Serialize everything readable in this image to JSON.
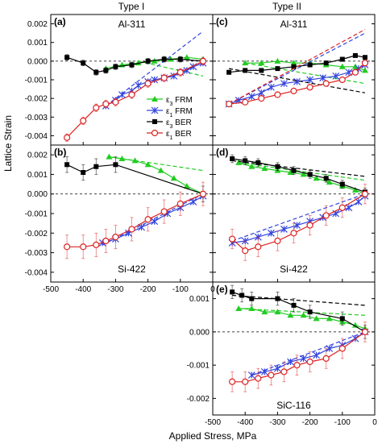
{
  "figure": {
    "column_titles": [
      "Type I",
      "Type II"
    ],
    "ylabel": "Lattice Strain",
    "xlabel": "Applied Stress, MPa",
    "legend": [
      {
        "key": "e3FRM",
        "sym": "ε",
        "sub": "3",
        "rest": " FRM",
        "color": "#22cc22",
        "marker": "triangle"
      },
      {
        "key": "e1FRM",
        "sym": "ε",
        "sub": "1",
        "rest": " FRM",
        "color": "#3344dd",
        "marker": "star"
      },
      {
        "key": "e3BER",
        "sym": "ε",
        "sub": "3",
        "rest": " BER",
        "color": "#000000",
        "marker": "square"
      },
      {
        "key": "e1BER",
        "sym": "ε",
        "sub": "1",
        "rest": " BER",
        "color": "#dd2222",
        "marker": "circle"
      }
    ],
    "x_ticks": [
      "-500",
      "-400",
      "-300",
      "-200",
      "-100",
      "0"
    ]
  },
  "chart_data": [
    {
      "type": "line",
      "panel": "(a)",
      "label": "Al-311",
      "xlim": [
        -500,
        0
      ],
      "ylim": [
        -0.0045,
        0.0025
      ],
      "yticks": [
        "0.002",
        "0.001",
        "0.000",
        "-0.001",
        "-0.002",
        "-0.003",
        "-0.004"
      ],
      "series": [
        {
          "key": "e3FRM",
          "x": [
            -330,
            -280,
            -230,
            -180,
            -130,
            -80,
            -30
          ],
          "y": [
            -0.0004,
            -0.0002,
            -0.0001,
            0.0,
            0.0001,
            0.0002,
            0.0001
          ],
          "fit": [
            [
              -230,
              0.0
            ],
            [
              -30,
              -0.0008
            ]
          ]
        },
        {
          "key": "e1FRM",
          "x": [
            -330,
            -300,
            -280,
            -250,
            -230,
            -200,
            -180,
            -150,
            -120,
            -100,
            -80,
            -60,
            -30
          ],
          "y": [
            -0.0024,
            -0.0021,
            -0.0018,
            -0.0016,
            -0.0013,
            -0.0011,
            -0.001,
            -0.0009,
            -0.0008,
            -0.0006,
            -0.0005,
            -0.0003,
            -0.0001
          ],
          "fit": [
            [
              -330,
              -0.0024
            ],
            [
              -30,
              0.0016
            ]
          ]
        },
        {
          "key": "e3BER",
          "x": [
            -450,
            -400,
            -360,
            -330,
            -300,
            -250,
            -200,
            -150,
            -100,
            -30
          ],
          "y": [
            0.0002,
            -0.0001,
            -0.0006,
            -0.0005,
            -0.0003,
            -0.0002,
            0.0,
            0.0001,
            0.0001,
            0.0
          ],
          "errors": 0.00015
        },
        {
          "key": "e1BER",
          "x": [
            -450,
            -400,
            -360,
            -330,
            -300,
            -250,
            -200,
            -150,
            -100,
            -30
          ],
          "y": [
            -0.0041,
            -0.0032,
            -0.0025,
            -0.0023,
            -0.0022,
            -0.0018,
            -0.0012,
            -0.0009,
            -0.0006,
            0.0
          ],
          "errors": 0.0002
        }
      ]
    },
    {
      "type": "line",
      "panel": "(b)",
      "label": "Si-422",
      "xlim": [
        -500,
        0
      ],
      "ylim": [
        -0.0045,
        0.0025
      ],
      "yticks": [
        "0.002",
        "0.001",
        "0.000",
        "-0.001",
        "-0.002",
        "-0.003",
        "-0.004"
      ],
      "series": [
        {
          "key": "e3FRM",
          "x": [
            -320,
            -280,
            -240,
            -200,
            -160,
            -120,
            -80,
            -30
          ],
          "y": [
            0.0019,
            0.0018,
            0.0017,
            0.0015,
            0.0012,
            0.0008,
            0.0004,
            0.0
          ],
          "fit": [
            [
              -320,
              0.0019
            ],
            [
              -30,
              0.0012
            ]
          ]
        },
        {
          "key": "e1FRM",
          "x": [
            -340,
            -300,
            -260,
            -220,
            -180,
            -140,
            -100,
            -60,
            -30
          ],
          "y": [
            -0.0025,
            -0.0023,
            -0.002,
            -0.0017,
            -0.0014,
            -0.001,
            -0.0007,
            -0.0004,
            -0.0001
          ],
          "fit": [
            [
              -340,
              -0.0026
            ],
            [
              -30,
              0.0
            ]
          ]
        },
        {
          "key": "e3BER",
          "x": [
            -450,
            -400,
            -360,
            -300,
            -30
          ],
          "y": [
            0.0015,
            0.0011,
            0.0014,
            0.0015,
            0.0
          ],
          "errors": 0.0004
        },
        {
          "key": "e1BER",
          "x": [
            -450,
            -400,
            -360,
            -330,
            -300,
            -250,
            -200,
            -150,
            -100,
            -30
          ],
          "y": [
            -0.0027,
            -0.0027,
            -0.0026,
            -0.0024,
            -0.0022,
            -0.0018,
            -0.0013,
            -0.0009,
            -0.0005,
            0.0
          ],
          "errors": 0.0006
        }
      ]
    },
    {
      "type": "line",
      "panel": "(c)",
      "label": "Al-311",
      "xlim": [
        -500,
        0
      ],
      "ylim": [
        -0.0045,
        0.0025
      ],
      "series": [
        {
          "key": "e3FRM",
          "x": [
            -400,
            -350,
            -300,
            -250,
            -200,
            -150,
            -100,
            -60,
            -30
          ],
          "y": [
            -0.0001,
            -0.0001,
            0.0,
            -0.0001,
            -0.0001,
            -0.0002,
            -0.0003,
            -0.0003,
            -0.0005
          ],
          "fit": [
            [
              -400,
              -0.0001
            ],
            [
              -30,
              -0.0012
            ]
          ]
        },
        {
          "key": "e1FRM",
          "x": [
            -450,
            -420,
            -380,
            -350,
            -320,
            -280,
            -240,
            -200,
            -160,
            -120,
            -80,
            -50,
            -30
          ],
          "y": [
            -0.0023,
            -0.0021,
            -0.0019,
            -0.0017,
            -0.0014,
            -0.0012,
            -0.0011,
            -0.001,
            -0.0009,
            -0.0008,
            -0.0006,
            -0.0004,
            -0.0002
          ],
          "fit": [
            [
              -450,
              -0.0023
            ],
            [
              -30,
              0.0015
            ]
          ]
        },
        {
          "key": "e3BER",
          "x": [
            -450,
            -400,
            -350,
            -300,
            -250,
            -200,
            -150,
            -100,
            -60,
            -30
          ],
          "y": [
            -0.0006,
            -0.0005,
            -0.0005,
            -0.0004,
            -0.0003,
            -0.0002,
            -0.0001,
            0.0001,
            0.0003,
            0.0002
          ],
          "fit": [
            [
              -450,
              -0.0004
            ],
            [
              -30,
              -0.0017
            ]
          ]
        },
        {
          "key": "e1BER",
          "x": [
            -450,
            -400,
            -350,
            -300,
            -250,
            -200,
            -150,
            -100,
            -60,
            -30
          ],
          "y": [
            -0.0023,
            -0.0022,
            -0.002,
            -0.0018,
            -0.0016,
            -0.0014,
            -0.0012,
            -0.001,
            -0.0006,
            -0.0001
          ],
          "fit": [
            [
              -450,
              -0.0023
            ],
            [
              -30,
              0.0017
            ]
          ]
        }
      ]
    },
    {
      "type": "line",
      "panel": "(d)",
      "label": "Si-422",
      "xlim": [
        -500,
        0
      ],
      "ylim": [
        -0.0045,
        0.0025
      ],
      "series": [
        {
          "key": "e3FRM",
          "x": [
            -420,
            -380,
            -340,
            -300,
            -260,
            -220,
            -180,
            -140,
            -100,
            -60,
            -30
          ],
          "y": [
            0.0016,
            0.0014,
            0.0013,
            0.0012,
            0.0011,
            0.001,
            0.0008,
            0.0006,
            0.0004,
            0.0002,
            0.0
          ],
          "fit": [
            [
              -420,
              0.0016
            ],
            [
              -30,
              0.0007
            ]
          ]
        },
        {
          "key": "e1FRM",
          "x": [
            -440,
            -400,
            -360,
            -320,
            -280,
            -240,
            -200,
            -160,
            -120,
            -80,
            -50,
            -30
          ],
          "y": [
            -0.0025,
            -0.0024,
            -0.0022,
            -0.002,
            -0.0018,
            -0.0016,
            -0.0014,
            -0.0012,
            -0.001,
            -0.0007,
            -0.0004,
            -0.0001
          ],
          "fit": [
            [
              -440,
              -0.0024
            ],
            [
              -30,
              0.0
            ]
          ]
        },
        {
          "key": "e3BER",
          "x": [
            -440,
            -400,
            -360,
            -300,
            -250,
            -200,
            -150,
            -100,
            -30
          ],
          "y": [
            0.0018,
            0.0017,
            0.0016,
            0.0014,
            0.0012,
            0.001,
            0.0008,
            0.0005,
            0.0001
          ],
          "fit": [
            [
              -440,
              0.0017
            ],
            [
              -30,
              0.0009
            ]
          ],
          "errors": 0.0002
        },
        {
          "key": "e1BER",
          "x": [
            -440,
            -400,
            -360,
            -300,
            -250,
            -200,
            -150,
            -100,
            -30
          ],
          "y": [
            -0.0023,
            -0.0029,
            -0.0027,
            -0.0024,
            -0.002,
            -0.0016,
            -0.0011,
            -0.0007,
            0.0
          ],
          "errors": 0.0005
        }
      ]
    },
    {
      "type": "line",
      "panel": "(e)",
      "label": "SiC-116",
      "xlim": [
        -500,
        0
      ],
      "ylim": [
        -0.0025,
        0.0015
      ],
      "yticks": [
        "0.001",
        "0.000",
        "-0.001",
        "-0.002"
      ],
      "series": [
        {
          "key": "e3FRM",
          "x": [
            -420,
            -380,
            -340,
            -300,
            -260,
            -220,
            -180,
            -140,
            -100,
            -60,
            -30
          ],
          "y": [
            0.0007,
            0.0007,
            0.0006,
            0.0006,
            0.0005,
            0.0005,
            0.0004,
            0.0004,
            0.0003,
            0.0002,
            0.0001
          ],
          "fit": [
            [
              -420,
              0.0007
            ],
            [
              -30,
              0.0005
            ]
          ]
        },
        {
          "key": "e1FRM",
          "x": [
            -380,
            -340,
            -300,
            -260,
            -220,
            -180,
            -140,
            -100,
            -60,
            -30
          ],
          "y": [
            -0.0013,
            -0.0012,
            -0.0011,
            -0.0009,
            -0.0008,
            -0.0007,
            -0.0005,
            -0.0004,
            -0.0002,
            0.0
          ],
          "fit": [
            [
              -380,
              -0.0013
            ],
            [
              -30,
              0.0
            ]
          ]
        },
        {
          "key": "e3BER",
          "x": [
            -440,
            -410,
            -380,
            -300,
            -250,
            -200,
            -100,
            -30
          ],
          "y": [
            0.0012,
            0.0011,
            0.001,
            0.001,
            0.0008,
            0.0006,
            0.0004,
            0.0
          ],
          "fit": [
            [
              -440,
              0.0011
            ],
            [
              -30,
              0.0008
            ]
          ],
          "errors": 0.0002
        },
        {
          "key": "e1BER",
          "x": [
            -440,
            -400,
            -360,
            -320,
            -280,
            -240,
            -200,
            -150,
            -100,
            -30
          ],
          "y": [
            -0.0015,
            -0.0015,
            -0.0014,
            -0.0013,
            -0.0012,
            -0.001,
            -0.0009,
            -0.0008,
            -0.0005,
            0.0
          ],
          "errors": 0.0003
        }
      ]
    }
  ]
}
